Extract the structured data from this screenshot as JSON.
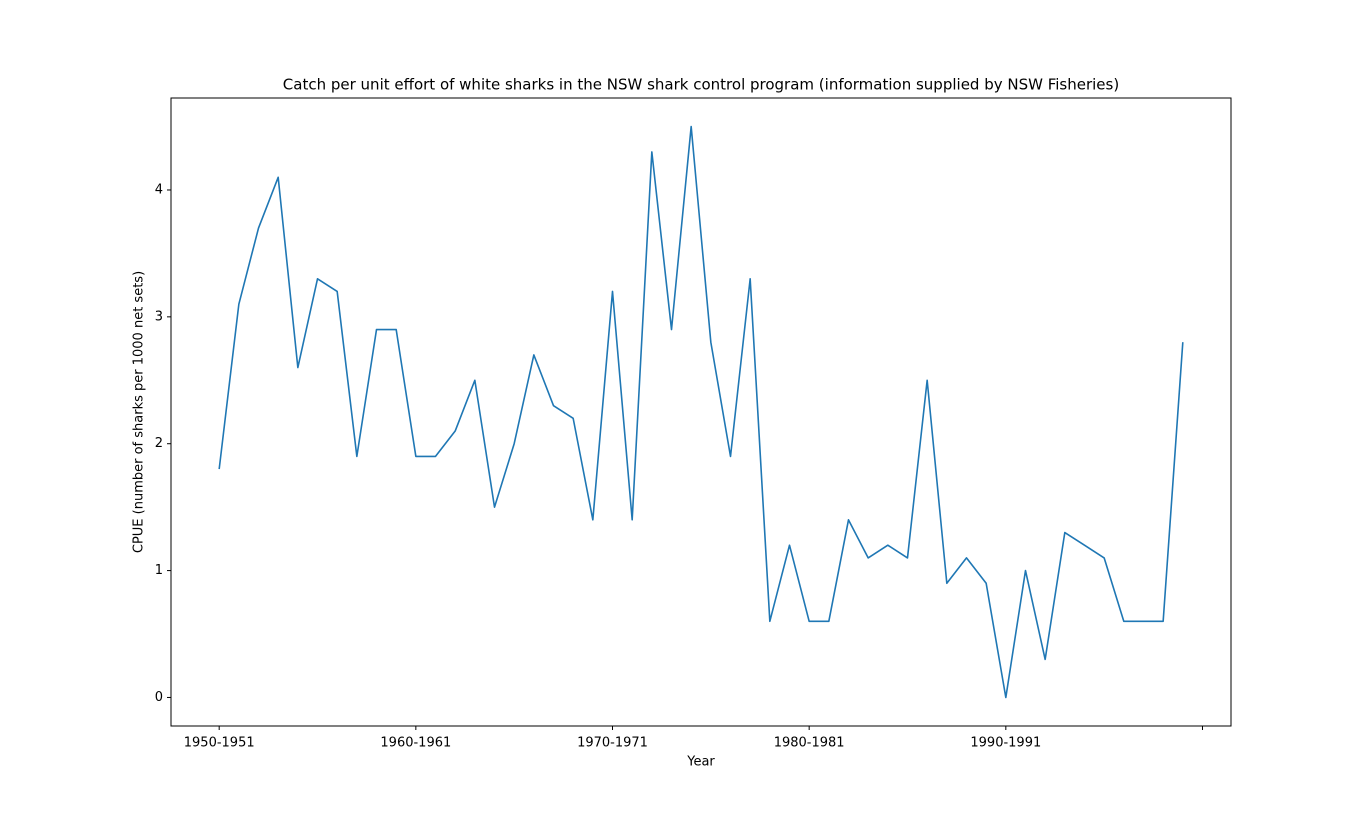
{
  "chart_data": {
    "type": "line",
    "title": "Catch per unit effort of white sharks in the NSW shark control program (information supplied by NSW Fisheries)",
    "xlabel": "Year",
    "ylabel": "CPUE (number of sharks per 1000 net sets)",
    "categories": [
      "1950-1951",
      null,
      null,
      null,
      null,
      null,
      null,
      null,
      null,
      null,
      "1960-1961",
      null,
      null,
      null,
      null,
      null,
      null,
      null,
      null,
      null,
      "1970-1971",
      null,
      null,
      null,
      null,
      null,
      null,
      null,
      null,
      null,
      "1980-1981",
      null,
      null,
      null,
      null,
      null,
      null,
      null,
      null,
      null,
      "1990-1991",
      null,
      null,
      null,
      null,
      null,
      null,
      null,
      null,
      null
    ],
    "series": [
      {
        "name": "CPUE",
        "color": "#1f77b4",
        "values": [
          1.8,
          3.1,
          3.7,
          4.1,
          2.6,
          3.3,
          3.2,
          1.9,
          2.9,
          2.9,
          1.9,
          1.9,
          2.1,
          2.5,
          1.5,
          2.0,
          2.7,
          2.3,
          2.2,
          1.4,
          3.2,
          1.4,
          4.3,
          2.9,
          4.5,
          2.8,
          1.9,
          3.3,
          0.6,
          1.2,
          0.6,
          0.6,
          1.4,
          1.1,
          1.2,
          1.1,
          2.5,
          0.9,
          1.1,
          0.9,
          0.0,
          1.0,
          0.3,
          1.3,
          1.2,
          1.1,
          0.6,
          0.6,
          0.6,
          2.8
        ]
      }
    ],
    "xlim": [
      -2.45,
      51.45
    ],
    "xticks": [
      0,
      10,
      20,
      30,
      40,
      50
    ],
    "ylim": [
      -0.225,
      4.725
    ],
    "yticks": [
      0,
      1,
      2,
      3,
      4
    ]
  }
}
